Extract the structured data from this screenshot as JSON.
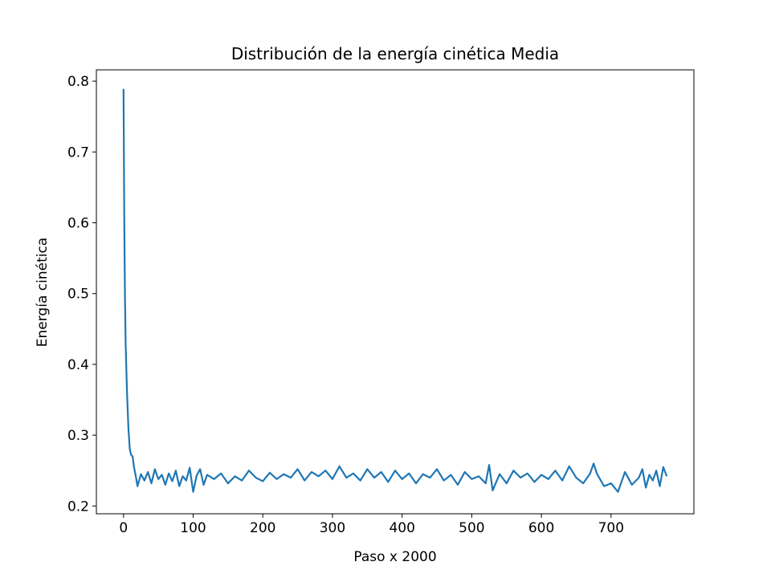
{
  "chart_data": {
    "type": "line",
    "title": "Distribución de la energía cinética Media",
    "xlabel": "Paso x 2000",
    "ylabel": "Energía cinética",
    "x": [
      0,
      1,
      2,
      3,
      5,
      7,
      9,
      11,
      13,
      15,
      18,
      20,
      25,
      30,
      35,
      40,
      45,
      50,
      55,
      60,
      65,
      70,
      75,
      80,
      85,
      90,
      95,
      100,
      105,
      110,
      115,
      120,
      130,
      140,
      150,
      160,
      170,
      180,
      190,
      200,
      210,
      220,
      230,
      240,
      250,
      260,
      270,
      280,
      290,
      300,
      310,
      320,
      330,
      340,
      350,
      360,
      370,
      380,
      390,
      400,
      410,
      420,
      430,
      440,
      450,
      460,
      470,
      480,
      490,
      500,
      510,
      520,
      525,
      530,
      540,
      550,
      560,
      570,
      580,
      590,
      600,
      610,
      620,
      630,
      640,
      650,
      660,
      670,
      675,
      680,
      690,
      700,
      710,
      720,
      730,
      740,
      745,
      750,
      755,
      760,
      765,
      770,
      775,
      780
    ],
    "series": [
      {
        "name": "Energía cinética",
        "color": "#1f77b4",
        "values": [
          0.789,
          0.61,
          0.5,
          0.43,
          0.36,
          0.31,
          0.28,
          0.272,
          0.27,
          0.255,
          0.24,
          0.228,
          0.245,
          0.236,
          0.248,
          0.232,
          0.252,
          0.238,
          0.244,
          0.23,
          0.246,
          0.235,
          0.25,
          0.228,
          0.242,
          0.236,
          0.254,
          0.22,
          0.243,
          0.252,
          0.23,
          0.244,
          0.238,
          0.246,
          0.232,
          0.242,
          0.236,
          0.25,
          0.24,
          0.235,
          0.247,
          0.238,
          0.245,
          0.24,
          0.252,
          0.236,
          0.248,
          0.242,
          0.25,
          0.238,
          0.256,
          0.24,
          0.246,
          0.236,
          0.252,
          0.24,
          0.248,
          0.234,
          0.25,
          0.238,
          0.246,
          0.232,
          0.245,
          0.24,
          0.252,
          0.236,
          0.244,
          0.23,
          0.248,
          0.238,
          0.242,
          0.232,
          0.258,
          0.222,
          0.245,
          0.232,
          0.25,
          0.24,
          0.246,
          0.234,
          0.244,
          0.238,
          0.25,
          0.236,
          0.256,
          0.24,
          0.232,
          0.246,
          0.26,
          0.245,
          0.228,
          0.232,
          0.22,
          0.248,
          0.23,
          0.24,
          0.252,
          0.226,
          0.244,
          0.236,
          0.25,
          0.228,
          0.255,
          0.242
        ]
      }
    ],
    "xlim": [
      -39,
      819
    ],
    "ylim": [
      0.189,
      0.816
    ],
    "xticks": [
      0,
      100,
      200,
      300,
      400,
      500,
      600,
      700
    ],
    "yticks": [
      0.2,
      0.3,
      0.4,
      0.5,
      0.6,
      0.7,
      0.8
    ]
  }
}
